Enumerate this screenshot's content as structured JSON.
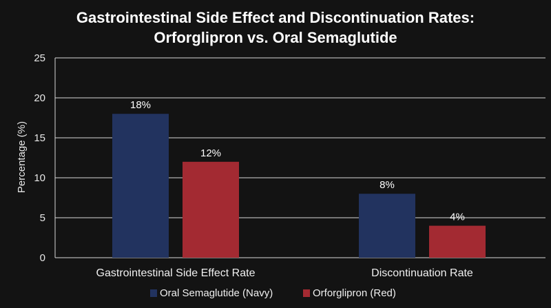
{
  "chart_data": {
    "type": "bar",
    "title_lines": [
      "Gastrointestinal Side Effect and Discontinuation Rates:",
      "Orforglipron vs. Oral Semaglutide"
    ],
    "ylabel": "Percentage (%)",
    "xlabel": "",
    "ylim": [
      0,
      25
    ],
    "yticks": [
      0,
      5,
      10,
      15,
      20,
      25
    ],
    "grid": true,
    "legend_position": "bottom-center",
    "categories": [
      "Gastrointestinal Side Effect Rate",
      "Discontinuation Rate"
    ],
    "series": [
      {
        "name": "Oral Semaglutide (Navy)",
        "color": "#22335f",
        "values": [
          18,
          8
        ],
        "labels": [
          "18%",
          "8%"
        ]
      },
      {
        "name": "Orforglipron (Red)",
        "color": "#a32a32",
        "values": [
          12,
          4
        ],
        "labels": [
          "12%",
          "4%"
        ]
      }
    ]
  }
}
